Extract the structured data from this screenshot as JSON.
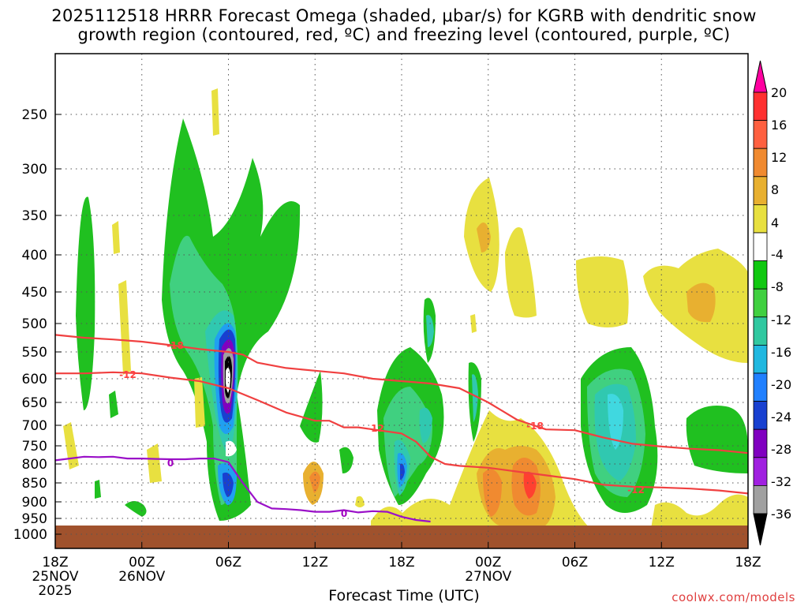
{
  "title_line1": "2025112518 HRRR Forecast Omega (shaded, μbar/s) for KGRB with dendritic snow",
  "title_line2": "growth region (contoured, red, ºC) and freezing level (contoured, purple, ºC)",
  "xlabel": "Forecast Time (UTC)",
  "credit": "coolwx.com/models",
  "chart_data": {
    "type": "heatmap",
    "x_ticks": [
      {
        "hour": 0,
        "label1": "18Z",
        "label2": "25NOV",
        "label3": "2025"
      },
      {
        "hour": 6,
        "label1": "00Z",
        "label2": "26NOV",
        "label3": ""
      },
      {
        "hour": 12,
        "label1": "06Z",
        "label2": "",
        "label3": ""
      },
      {
        "hour": 18,
        "label1": "12Z",
        "label2": "",
        "label3": ""
      },
      {
        "hour": 24,
        "label1": "18Z",
        "label2": "",
        "label3": ""
      },
      {
        "hour": 30,
        "label1": "00Z",
        "label2": "27NOV",
        "label3": ""
      },
      {
        "hour": 36,
        "label1": "06Z",
        "label2": "",
        "label3": ""
      },
      {
        "hour": 42,
        "label1": "12Z",
        "label2": "",
        "label3": ""
      },
      {
        "hour": 48,
        "label1": "18Z",
        "label2": "",
        "label3": ""
      }
    ],
    "y_ticks": [
      250,
      300,
      350,
      400,
      450,
      500,
      550,
      600,
      650,
      700,
      750,
      800,
      850,
      900,
      950,
      1000
    ],
    "ylim": [
      1000,
      200
    ],
    "grid": true,
    "colorbar": {
      "labels": [
        20,
        16,
        12,
        8,
        4,
        -4,
        -8,
        -12,
        -16,
        -20,
        -24,
        -28,
        -32,
        -36
      ],
      "colors": [
        "#ff00a0",
        "#ff3030",
        "#ff6040",
        "#f08a30",
        "#e8b030",
        "#e8e040",
        "#ffffff",
        "#10c810",
        "#40d040",
        "#30c8a0",
        "#20b8e0",
        "#2080ff",
        "#1840d0",
        "#8000c0",
        "#a020e0",
        "#a0a0a0",
        "#000000"
      ]
    },
    "contour_labels": {
      "dgz_upper": [
        "-18",
        "-18"
      ],
      "dgz_lower": [
        "-12",
        "-12",
        "-12"
      ],
      "freezing": [
        "0",
        "0"
      ]
    },
    "series": [
      {
        "name": "DGZ upper (-18ºC)",
        "x": [
          0,
          2,
          4,
          6,
          8,
          10,
          12,
          13,
          14,
          16,
          18,
          20,
          22,
          24,
          26,
          28,
          30,
          32,
          34,
          36,
          38,
          40,
          42,
          44,
          46,
          48
        ],
        "y": [
          520,
          525,
          528,
          532,
          538,
          545,
          550,
          555,
          570,
          580,
          585,
          590,
          600,
          605,
          610,
          620,
          650,
          688,
          710,
          712,
          730,
          745,
          752,
          758,
          762,
          770
        ]
      },
      {
        "name": "DGZ lower (-12ºC)",
        "x": [
          0,
          2,
          4,
          6,
          8,
          10,
          12,
          14,
          16,
          18,
          19,
          20,
          21,
          22,
          24,
          25,
          26,
          27,
          28,
          30,
          32,
          34,
          36,
          38,
          40,
          42,
          44,
          46,
          48
        ],
        "y": [
          590,
          590,
          588,
          590,
          598,
          605,
          620,
          645,
          672,
          690,
          690,
          705,
          705,
          710,
          720,
          740,
          780,
          800,
          805,
          810,
          820,
          830,
          840,
          855,
          860,
          862,
          865,
          870,
          878
        ]
      },
      {
        "name": "Freezing level (0ºC)",
        "x": [
          0,
          1,
          2,
          3,
          4,
          5,
          6,
          7,
          8,
          9,
          10,
          11,
          12,
          13,
          14,
          15,
          16,
          17,
          18,
          19,
          20,
          21,
          22,
          23,
          24,
          25,
          26
        ],
        "y": [
          790,
          785,
          780,
          781,
          780,
          785,
          785,
          786,
          787,
          787,
          785,
          785,
          795,
          850,
          900,
          920,
          922,
          925,
          930,
          930,
          925,
          932,
          928,
          930,
          945,
          955,
          960
        ]
      }
    ]
  }
}
